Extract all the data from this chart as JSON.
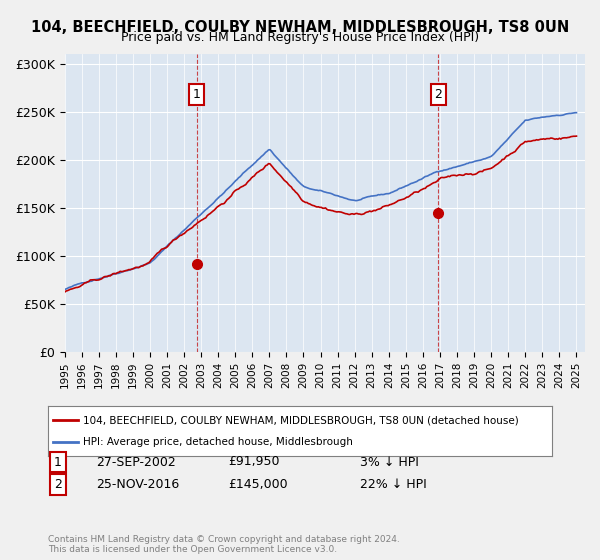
{
  "title": "104, BEECHFIELD, COULBY NEWHAM, MIDDLESBROUGH, TS8 0UN",
  "subtitle": "Price paid vs. HM Land Registry's House Price Index (HPI)",
  "legend_line1": "104, BEECHFIELD, COULBY NEWHAM, MIDDLESBROUGH, TS8 0UN (detached house)",
  "legend_line2": "HPI: Average price, detached house, Middlesbrough",
  "annotation1": {
    "label": "1",
    "date": "27-SEP-2002",
    "price": "£91,950",
    "pct": "3% ↓ HPI"
  },
  "annotation2": {
    "label": "2",
    "date": "25-NOV-2016",
    "price": "£145,000",
    "pct": "22% ↓ HPI"
  },
  "footer": "Contains HM Land Registry data © Crown copyright and database right 2024.\nThis data is licensed under the Open Government Licence v3.0.",
  "hpi_color": "#4472c4",
  "price_color": "#c00000",
  "annotation_color": "#c00000",
  "background_color": "#dce6f1",
  "plot_bg_color": "#dce6f1",
  "ylim": [
    0,
    310000
  ],
  "yticks": [
    0,
    50000,
    100000,
    150000,
    200000,
    250000,
    300000
  ],
  "ytick_labels": [
    "£0",
    "£50K",
    "£100K",
    "£150K",
    "£200K",
    "£250K",
    "£300K"
  ],
  "purchase1_x": 2002.74,
  "purchase1_y": 91950,
  "purchase2_x": 2016.9,
  "purchase2_y": 145000,
  "xmin": 1995,
  "xmax": 2025
}
